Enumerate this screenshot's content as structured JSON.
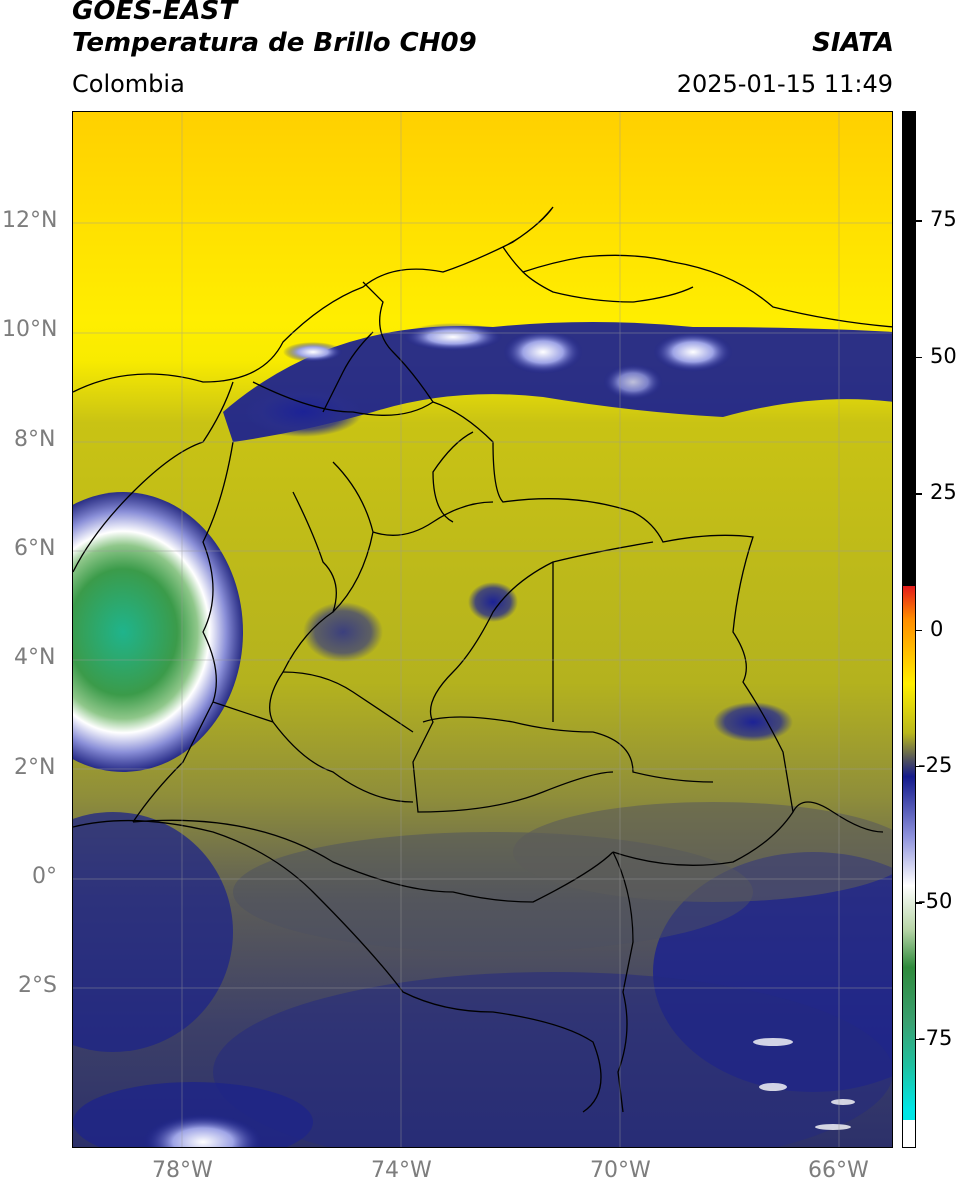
{
  "header": {
    "satellite": "GOES-EAST",
    "product": "Temperatura de Brillo CH09",
    "source": "SIATA",
    "region": "Colombia",
    "timestamp": "2025-01-15 11:49"
  },
  "map": {
    "lat_labels": [
      "12°N",
      "10°N",
      "8°N",
      "6°N",
      "4°N",
      "2°N",
      "0°",
      "2°S"
    ],
    "lon_labels": [
      "78°W",
      "74°W",
      "70°W",
      "66°W"
    ],
    "lat_values": [
      12,
      10,
      8,
      6,
      4,
      2,
      0,
      -2
    ],
    "lon_values": [
      -78,
      -74,
      -70,
      -66
    ],
    "extent": {
      "lon_min": -80.0,
      "lon_max": -65.0,
      "lat_min": -5.0,
      "lat_max": 14.0
    }
  },
  "colorbar": {
    "tick_labels": [
      "75",
      "50",
      "25",
      "0",
      "-25",
      "-50",
      "-75"
    ],
    "tick_values": [
      75,
      50,
      25,
      0,
      -25,
      -50,
      -75
    ],
    "range": [
      -95,
      95
    ],
    "colors": {
      "black": "#000000",
      "red": "#e31a1c",
      "orange": "#ff8c00",
      "yellow": "#ffef00",
      "olive": "#b9b81c",
      "gray": "#4f5060",
      "navy": "#141a8c",
      "white": "#ffffff",
      "green": "#2f8a3c",
      "teal": "#1fc0a0",
      "cyan": "#00e5e5"
    }
  }
}
